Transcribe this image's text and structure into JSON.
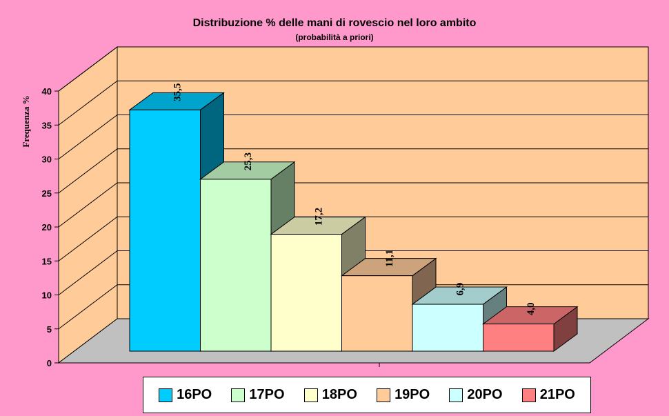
{
  "chart_data": {
    "type": "bar",
    "title": "Distribuzione % delle mani di rovescio nel loro ambito",
    "subtitle": "(probabilità a priori)",
    "xlabel": "",
    "ylabel": "Frequenza %",
    "ylim": [
      0,
      40
    ],
    "yticks": [
      "0",
      "5",
      "10",
      "15",
      "20",
      "25",
      "30",
      "35",
      "40"
    ],
    "grid": true,
    "three_d": true,
    "legend_position": "bottom",
    "categories": [
      "16PO",
      "17PO",
      "18PO",
      "19PO",
      "20PO",
      "21PO"
    ],
    "values": [
      35.5,
      25.3,
      17.2,
      11.1,
      6.9,
      4.0
    ],
    "value_labels": [
      "35,5",
      "25,3",
      "17,2",
      "11,1",
      "6,9",
      "4,0"
    ],
    "colors": [
      "#00ccff",
      "#ccffcc",
      "#ffffcc",
      "#ffcc99",
      "#ccffff",
      "#ff8080"
    ],
    "side_colors": [
      "#006680",
      "#668066",
      "#808066",
      "#806650",
      "#668080",
      "#804040"
    ],
    "top_colors": [
      "#00a3cc",
      "#a3cca3",
      "#cccca3",
      "#cca37a",
      "#a3cccc",
      "#cc6666"
    ],
    "plot_background": "#ffcc99",
    "floor_color": "#c0c0c0",
    "page_background": "#ff99cc"
  }
}
